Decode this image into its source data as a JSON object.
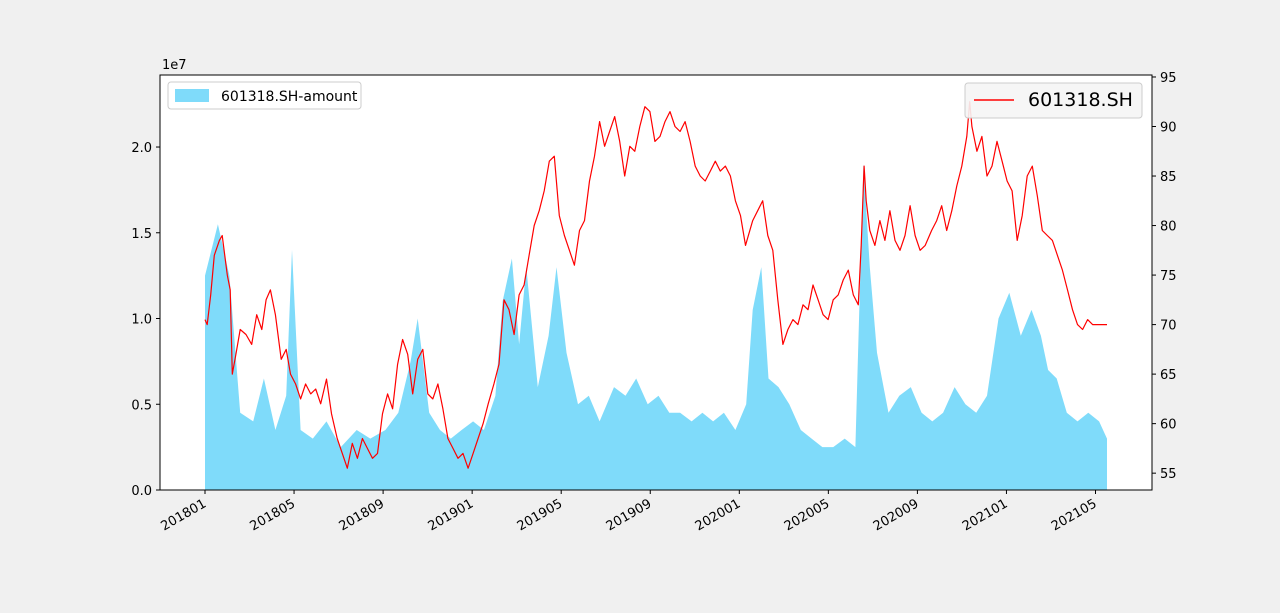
{
  "chart_data": {
    "type": "area+line",
    "x_ticks": [
      "201801",
      "201805",
      "201809",
      "201901",
      "201905",
      "201909",
      "202001",
      "202005",
      "202009",
      "202101",
      "202105"
    ],
    "x_range": [
      "2018-01-02",
      "2021-06-10"
    ],
    "y_left": {
      "multiplier_label": "1e7",
      "ticks": [
        "0.0",
        "0.5",
        "1.0",
        "1.5",
        "2.0"
      ],
      "tick_values": [
        0,
        0.5,
        1.0,
        1.5,
        2.0
      ],
      "lim": [
        0,
        2.42
      ]
    },
    "y_right": {
      "ticks": [
        "55",
        "60",
        "65",
        "70",
        "75",
        "80",
        "85",
        "90",
        "95"
      ],
      "tick_values": [
        55,
        60,
        65,
        70,
        75,
        80,
        85,
        90,
        95
      ],
      "lim": [
        53.3,
        95.2
      ]
    },
    "grid": false,
    "series": [
      {
        "name": "601318.SH-amount",
        "kind": "area",
        "axis": "left",
        "color": "#7fdbfa",
        "legend_position": "top-left",
        "points": [
          [
            "2018-01-02",
            1.25
          ],
          [
            "2018-01-20",
            1.55
          ],
          [
            "2018-02-05",
            1.25
          ],
          [
            "2018-02-20",
            0.45
          ],
          [
            "2018-03-10",
            0.4
          ],
          [
            "2018-03-25",
            0.65
          ],
          [
            "2018-04-10",
            0.35
          ],
          [
            "2018-04-25",
            0.55
          ],
          [
            "2018-05-03",
            1.4
          ],
          [
            "2018-05-15",
            0.35
          ],
          [
            "2018-06-01",
            0.3
          ],
          [
            "2018-06-20",
            0.4
          ],
          [
            "2018-07-10",
            0.25
          ],
          [
            "2018-08-01",
            0.35
          ],
          [
            "2018-08-20",
            0.3
          ],
          [
            "2018-09-10",
            0.35
          ],
          [
            "2018-09-28",
            0.45
          ],
          [
            "2018-10-15",
            0.75
          ],
          [
            "2018-10-25",
            1.0
          ],
          [
            "2018-11-10",
            0.45
          ],
          [
            "2018-11-25",
            0.35
          ],
          [
            "2018-12-10",
            0.3
          ],
          [
            "2018-12-25",
            0.35
          ],
          [
            "2019-01-10",
            0.4
          ],
          [
            "2019-01-25",
            0.35
          ],
          [
            "2019-02-10",
            0.55
          ],
          [
            "2019-02-20",
            1.1
          ],
          [
            "2019-03-05",
            1.35
          ],
          [
            "2019-03-15",
            0.85
          ],
          [
            "2019-03-25",
            1.3
          ],
          [
            "2019-04-10",
            0.6
          ],
          [
            "2019-04-25",
            0.9
          ],
          [
            "2019-05-06",
            1.3
          ],
          [
            "2019-05-20",
            0.8
          ],
          [
            "2019-06-05",
            0.5
          ],
          [
            "2019-06-20",
            0.55
          ],
          [
            "2019-07-05",
            0.4
          ],
          [
            "2019-07-25",
            0.6
          ],
          [
            "2019-08-10",
            0.55
          ],
          [
            "2019-08-25",
            0.65
          ],
          [
            "2019-09-10",
            0.5
          ],
          [
            "2019-09-25",
            0.55
          ],
          [
            "2019-10-10",
            0.45
          ],
          [
            "2019-10-25",
            0.45
          ],
          [
            "2019-11-10",
            0.4
          ],
          [
            "2019-11-25",
            0.45
          ],
          [
            "2019-12-10",
            0.4
          ],
          [
            "2019-12-25",
            0.45
          ],
          [
            "2020-01-10",
            0.35
          ],
          [
            "2020-01-25",
            0.5
          ],
          [
            "2020-02-03",
            1.05
          ],
          [
            "2020-02-15",
            1.3
          ],
          [
            "2020-02-25",
            0.65
          ],
          [
            "2020-03-10",
            0.6
          ],
          [
            "2020-03-25",
            0.5
          ],
          [
            "2020-04-10",
            0.35
          ],
          [
            "2020-04-25",
            0.3
          ],
          [
            "2020-05-10",
            0.25
          ],
          [
            "2020-05-25",
            0.25
          ],
          [
            "2020-06-10",
            0.3
          ],
          [
            "2020-06-25",
            0.25
          ],
          [
            "2020-07-06",
            1.9
          ],
          [
            "2020-07-15",
            1.3
          ],
          [
            "2020-07-25",
            0.8
          ],
          [
            "2020-08-10",
            0.45
          ],
          [
            "2020-08-25",
            0.55
          ],
          [
            "2020-09-10",
            0.6
          ],
          [
            "2020-09-25",
            0.45
          ],
          [
            "2020-10-10",
            0.4
          ],
          [
            "2020-10-25",
            0.45
          ],
          [
            "2020-11-10",
            0.6
          ],
          [
            "2020-11-25",
            0.5
          ],
          [
            "2020-12-10",
            0.45
          ],
          [
            "2020-12-25",
            0.55
          ],
          [
            "2021-01-10",
            1.0
          ],
          [
            "2021-01-25",
            1.15
          ],
          [
            "2021-02-10",
            0.9
          ],
          [
            "2021-02-25",
            1.05
          ],
          [
            "2021-03-10",
            0.9
          ],
          [
            "2021-03-20",
            0.7
          ],
          [
            "2021-04-01",
            0.65
          ],
          [
            "2021-04-15",
            0.45
          ],
          [
            "2021-04-30",
            0.4
          ],
          [
            "2021-05-15",
            0.45
          ],
          [
            "2021-05-30",
            0.4
          ],
          [
            "2021-06-10",
            0.3
          ]
        ]
      },
      {
        "name": "601318.SH",
        "kind": "line",
        "axis": "right",
        "color": "#ff0000",
        "legend_position": "top-right",
        "points": [
          [
            "2018-01-02",
            70.5
          ],
          [
            "2018-01-05",
            70.0
          ],
          [
            "2018-01-10",
            73.0
          ],
          [
            "2018-01-15",
            77.0
          ],
          [
            "2018-01-22",
            78.5
          ],
          [
            "2018-01-26",
            79.0
          ],
          [
            "2018-02-02",
            75.0
          ],
          [
            "2018-02-06",
            73.5
          ],
          [
            "2018-02-09",
            65.0
          ],
          [
            "2018-02-14",
            67.0
          ],
          [
            "2018-02-20",
            69.5
          ],
          [
            "2018-02-28",
            69.0
          ],
          [
            "2018-03-08",
            68.0
          ],
          [
            "2018-03-15",
            71.0
          ],
          [
            "2018-03-22",
            69.5
          ],
          [
            "2018-03-28",
            72.5
          ],
          [
            "2018-04-03",
            73.5
          ],
          [
            "2018-04-10",
            71.0
          ],
          [
            "2018-04-18",
            66.5
          ],
          [
            "2018-04-25",
            67.5
          ],
          [
            "2018-05-01",
            65.0
          ],
          [
            "2018-05-08",
            64.0
          ],
          [
            "2018-05-15",
            62.5
          ],
          [
            "2018-05-22",
            64.0
          ],
          [
            "2018-05-29",
            63.0
          ],
          [
            "2018-06-05",
            63.5
          ],
          [
            "2018-06-12",
            62.0
          ],
          [
            "2018-06-20",
            64.5
          ],
          [
            "2018-06-27",
            61.0
          ],
          [
            "2018-07-05",
            58.5
          ],
          [
            "2018-07-12",
            57.0
          ],
          [
            "2018-07-19",
            55.5
          ],
          [
            "2018-07-26",
            58.0
          ],
          [
            "2018-08-02",
            56.5
          ],
          [
            "2018-08-09",
            58.5
          ],
          [
            "2018-08-16",
            57.5
          ],
          [
            "2018-08-23",
            56.5
          ],
          [
            "2018-08-30",
            57.0
          ],
          [
            "2018-09-06",
            61.0
          ],
          [
            "2018-09-13",
            63.0
          ],
          [
            "2018-09-20",
            61.5
          ],
          [
            "2018-09-27",
            66.0
          ],
          [
            "2018-10-04",
            68.5
          ],
          [
            "2018-10-11",
            67.0
          ],
          [
            "2018-10-18",
            63.0
          ],
          [
            "2018-10-25",
            66.5
          ],
          [
            "2018-11-01",
            67.5
          ],
          [
            "2018-11-08",
            63.0
          ],
          [
            "2018-11-15",
            62.5
          ],
          [
            "2018-11-22",
            64.0
          ],
          [
            "2018-11-29",
            61.5
          ],
          [
            "2018-12-06",
            58.5
          ],
          [
            "2018-12-13",
            57.5
          ],
          [
            "2018-12-20",
            56.5
          ],
          [
            "2018-12-27",
            57.0
          ],
          [
            "2019-01-03",
            55.5
          ],
          [
            "2019-01-10",
            57.0
          ],
          [
            "2019-01-17",
            58.5
          ],
          [
            "2019-01-24",
            60.0
          ],
          [
            "2019-01-31",
            62.0
          ],
          [
            "2019-02-08",
            64.0
          ],
          [
            "2019-02-15",
            66.0
          ],
          [
            "2019-02-22",
            72.5
          ],
          [
            "2019-03-01",
            71.5
          ],
          [
            "2019-03-08",
            69.0
          ],
          [
            "2019-03-15",
            73.0
          ],
          [
            "2019-03-22",
            74.0
          ],
          [
            "2019-03-29",
            77.0
          ],
          [
            "2019-04-05",
            80.0
          ],
          [
            "2019-04-12",
            81.5
          ],
          [
            "2019-04-19",
            83.5
          ],
          [
            "2019-04-26",
            86.5
          ],
          [
            "2019-05-03",
            87.0
          ],
          [
            "2019-05-10",
            81.0
          ],
          [
            "2019-05-17",
            79.0
          ],
          [
            "2019-05-24",
            77.5
          ],
          [
            "2019-05-31",
            76.0
          ],
          [
            "2019-06-07",
            79.5
          ],
          [
            "2019-06-14",
            80.5
          ],
          [
            "2019-06-21",
            84.5
          ],
          [
            "2019-06-28",
            87.0
          ],
          [
            "2019-07-05",
            90.5
          ],
          [
            "2019-07-12",
            88.0
          ],
          [
            "2019-07-19",
            89.5
          ],
          [
            "2019-07-26",
            91.0
          ],
          [
            "2019-08-02",
            88.5
          ],
          [
            "2019-08-09",
            85.0
          ],
          [
            "2019-08-16",
            88.0
          ],
          [
            "2019-08-23",
            87.5
          ],
          [
            "2019-08-30",
            90.0
          ],
          [
            "2019-09-06",
            92.0
          ],
          [
            "2019-09-13",
            91.5
          ],
          [
            "2019-09-20",
            88.5
          ],
          [
            "2019-09-27",
            89.0
          ],
          [
            "2019-10-04",
            90.5
          ],
          [
            "2019-10-11",
            91.5
          ],
          [
            "2019-10-18",
            90.0
          ],
          [
            "2019-10-25",
            89.5
          ],
          [
            "2019-11-01",
            90.5
          ],
          [
            "2019-11-08",
            88.5
          ],
          [
            "2019-11-15",
            86.0
          ],
          [
            "2019-11-22",
            85.0
          ],
          [
            "2019-11-29",
            84.5
          ],
          [
            "2019-12-06",
            85.5
          ],
          [
            "2019-12-13",
            86.5
          ],
          [
            "2019-12-20",
            85.5
          ],
          [
            "2019-12-27",
            86.0
          ],
          [
            "2020-01-03",
            85.0
          ],
          [
            "2020-01-10",
            82.5
          ],
          [
            "2020-01-17",
            81.0
          ],
          [
            "2020-01-24",
            78.0
          ],
          [
            "2020-02-03",
            80.5
          ],
          [
            "2020-02-10",
            81.5
          ],
          [
            "2020-02-17",
            82.5
          ],
          [
            "2020-02-24",
            79.0
          ],
          [
            "2020-03-02",
            77.5
          ],
          [
            "2020-03-09",
            72.5
          ],
          [
            "2020-03-16",
            68.0
          ],
          [
            "2020-03-23",
            69.5
          ],
          [
            "2020-03-30",
            70.5
          ],
          [
            "2020-04-06",
            70.0
          ],
          [
            "2020-04-13",
            72.0
          ],
          [
            "2020-04-20",
            71.5
          ],
          [
            "2020-04-27",
            74.0
          ],
          [
            "2020-05-04",
            72.5
          ],
          [
            "2020-05-11",
            71.0
          ],
          [
            "2020-05-18",
            70.5
          ],
          [
            "2020-05-25",
            72.5
          ],
          [
            "2020-06-01",
            73.0
          ],
          [
            "2020-06-08",
            74.5
          ],
          [
            "2020-06-15",
            75.5
          ],
          [
            "2020-06-22",
            73.0
          ],
          [
            "2020-06-29",
            72.0
          ],
          [
            "2020-07-03",
            78.0
          ],
          [
            "2020-07-07",
            86.0
          ],
          [
            "2020-07-10",
            82.5
          ],
          [
            "2020-07-15",
            79.5
          ],
          [
            "2020-07-22",
            78.0
          ],
          [
            "2020-07-29",
            80.5
          ],
          [
            "2020-08-05",
            78.5
          ],
          [
            "2020-08-12",
            81.5
          ],
          [
            "2020-08-19",
            78.5
          ],
          [
            "2020-08-26",
            77.5
          ],
          [
            "2020-09-02",
            79.0
          ],
          [
            "2020-09-09",
            82.0
          ],
          [
            "2020-09-16",
            79.0
          ],
          [
            "2020-09-23",
            77.5
          ],
          [
            "2020-09-30",
            78.0
          ],
          [
            "2020-10-09",
            79.5
          ],
          [
            "2020-10-16",
            80.5
          ],
          [
            "2020-10-23",
            82.0
          ],
          [
            "2020-10-30",
            79.5
          ],
          [
            "2020-11-06",
            81.5
          ],
          [
            "2020-11-13",
            84.0
          ],
          [
            "2020-11-20",
            86.0
          ],
          [
            "2020-11-27",
            89.0
          ],
          [
            "2020-12-01",
            92.5
          ],
          [
            "2020-12-04",
            90.0
          ],
          [
            "2020-12-11",
            87.5
          ],
          [
            "2020-12-18",
            89.0
          ],
          [
            "2020-12-25",
            85.0
          ],
          [
            "2021-01-01",
            86.0
          ],
          [
            "2021-01-08",
            88.5
          ],
          [
            "2021-01-15",
            86.5
          ],
          [
            "2021-01-22",
            84.5
          ],
          [
            "2021-01-29",
            83.5
          ],
          [
            "2021-02-05",
            78.5
          ],
          [
            "2021-02-12",
            81.0
          ],
          [
            "2021-02-19",
            85.0
          ],
          [
            "2021-02-26",
            86.0
          ],
          [
            "2021-03-05",
            83.0
          ],
          [
            "2021-03-12",
            79.5
          ],
          [
            "2021-03-19",
            79.0
          ],
          [
            "2021-03-26",
            78.5
          ],
          [
            "2021-04-02",
            77.0
          ],
          [
            "2021-04-09",
            75.5
          ],
          [
            "2021-04-16",
            73.5
          ],
          [
            "2021-04-23",
            71.5
          ],
          [
            "2021-04-30",
            70.0
          ],
          [
            "2021-05-07",
            69.5
          ],
          [
            "2021-05-14",
            70.5
          ],
          [
            "2021-05-21",
            70.0
          ],
          [
            "2021-06-10",
            70.0
          ]
        ]
      }
    ]
  }
}
